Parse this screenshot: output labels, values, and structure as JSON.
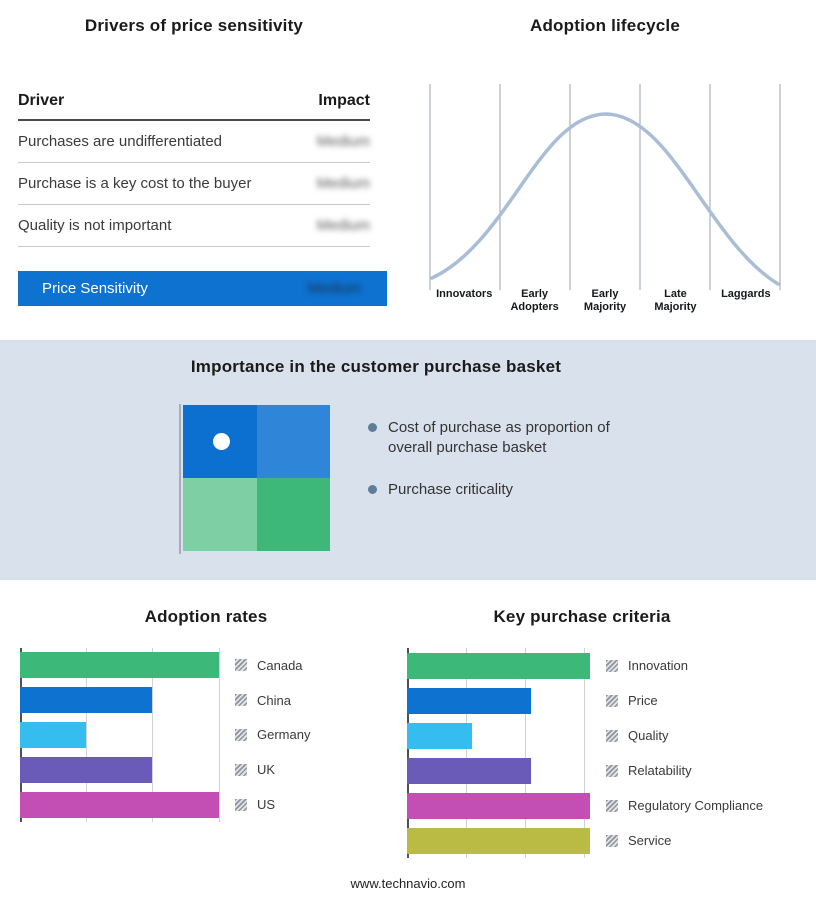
{
  "drivers_table": {
    "title": "Drivers of price sensitivity",
    "columns": {
      "driver": "Driver",
      "impact": "Impact"
    },
    "rows": [
      {
        "driver": "Purchases are undifferentiated",
        "impact": "Medium"
      },
      {
        "driver": "Purchase is a key cost to the buyer",
        "impact": "Medium"
      },
      {
        "driver": "Quality is not important",
        "impact": "Medium"
      }
    ],
    "summary": {
      "label": "Price Sensitivity",
      "impact": "Medium"
    },
    "summary_color": "#0e72d0"
  },
  "purchase_basket": {
    "title": "Importance in the customer purchase basket",
    "bullets": [
      "Cost of purchase as proportion of overall purchase basket",
      "Purchase criticality"
    ],
    "quadrant_colors": [
      "#0b70cf",
      "#2f86d9",
      "#7fcfa4",
      "#3eb878"
    ],
    "band_color": "#d9e2ec"
  },
  "footer": {
    "url": "www.technavio.com"
  },
  "chart_data": [
    {
      "type": "bar",
      "orientation": "horizontal",
      "title": "Adoption rates",
      "categories": [
        "Canada",
        "China",
        "Germany",
        "UK",
        "US"
      ],
      "values": [
        3.0,
        2.0,
        1.0,
        2.0,
        3.0
      ],
      "colors": [
        "#3cb878",
        "#0e72d0",
        "#35bdf0",
        "#6a5bb8",
        "#c44fb4"
      ],
      "xlim": [
        0,
        3.05
      ],
      "ticks": [
        0,
        1,
        2,
        3
      ],
      "grid": true,
      "legend_position": "right"
    },
    {
      "type": "bar",
      "orientation": "horizontal",
      "title": "Key purchase criteria",
      "categories": [
        "Innovation",
        "Price",
        "Quality",
        "Relatability",
        "Regulatory Compliance",
        "Service"
      ],
      "values": [
        3.1,
        2.1,
        1.1,
        2.1,
        3.1,
        3.1
      ],
      "colors": [
        "#3cb878",
        "#0e72d0",
        "#35bdf0",
        "#6a5bb8",
        "#c44fb4",
        "#b9bb45"
      ],
      "xlim": [
        0,
        3.15
      ],
      "ticks": [
        0,
        1,
        2,
        3
      ],
      "grid": true,
      "legend_position": "right"
    },
    {
      "type": "line",
      "title": "Adoption lifecycle",
      "x_categories": [
        "Innovators",
        "Early Adopters",
        "Early Majority",
        "Late Majority",
        "Laggards"
      ],
      "shape": "bell curve peaking over Early Majority",
      "curve_color": "#a9bdd6",
      "grid": true
    }
  ]
}
